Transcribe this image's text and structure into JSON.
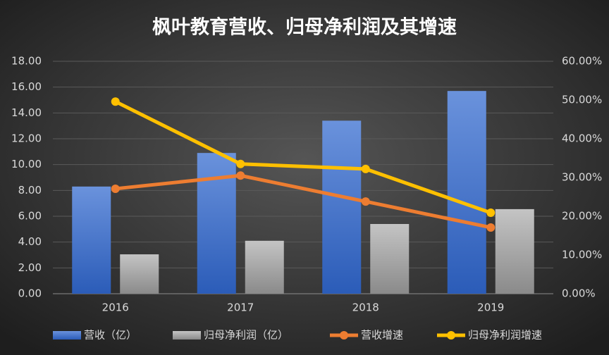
{
  "chart_data": {
    "type": "bar",
    "title": "枫叶教育营收、归母净利润及其增速",
    "categories": [
      "2016",
      "2017",
      "2018",
      "2019"
    ],
    "series": [
      {
        "name": "营收（亿）",
        "type": "bar",
        "color": "#4a78d0",
        "values": [
          8.3,
          10.9,
          13.4,
          15.7
        ]
      },
      {
        "name": "归母净利润（亿）",
        "type": "bar",
        "color": "#a6a6a6",
        "values": [
          3.05,
          4.1,
          5.4,
          6.55
        ]
      },
      {
        "name": "营收增速",
        "type": "line",
        "axis": "y2",
        "color": "#ed7d31",
        "values": [
          27.1,
          30.5,
          23.8,
          17.1
        ]
      },
      {
        "name": "归母净利润增速",
        "type": "line",
        "axis": "y2",
        "color": "#ffc000",
        "values": [
          49.6,
          33.5,
          32.2,
          20.9
        ]
      }
    ],
    "ylim": [
      0,
      18
    ],
    "yticks": [
      {
        "value": 0,
        "label": "0.00"
      },
      {
        "value": 2,
        "label": "2.00"
      },
      {
        "value": 4,
        "label": "4.00"
      },
      {
        "value": 6,
        "label": "6.00"
      },
      {
        "value": 8,
        "label": "8.00"
      },
      {
        "value": 10,
        "label": "10.00"
      },
      {
        "value": 12,
        "label": "12.00"
      },
      {
        "value": 14,
        "label": "14.00"
      },
      {
        "value": 16,
        "label": "16.00"
      },
      {
        "value": 18,
        "label": "18.00"
      }
    ],
    "y2lim": [
      0,
      60
    ],
    "y2ticks": [
      {
        "value": 0,
        "label": "0.00%"
      },
      {
        "value": 10,
        "label": "10.00%"
      },
      {
        "value": 20,
        "label": "20.00%"
      },
      {
        "value": 30,
        "label": "30.00%"
      },
      {
        "value": 40,
        "label": "40.00%"
      },
      {
        "value": 50,
        "label": "50.00%"
      },
      {
        "value": 60,
        "label": "60.00%"
      }
    ],
    "grid": true,
    "legend": "bottom"
  }
}
